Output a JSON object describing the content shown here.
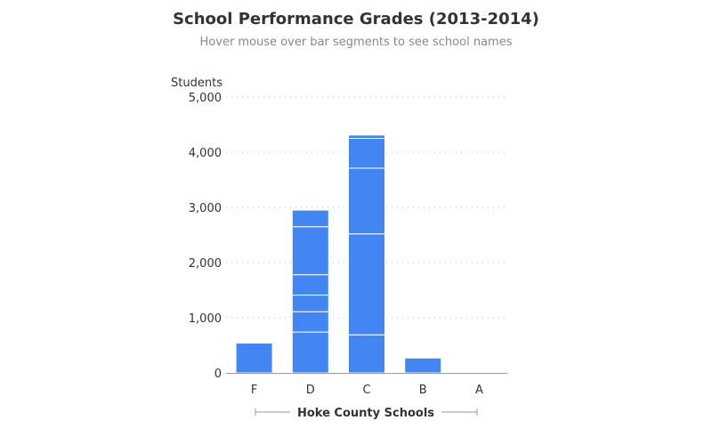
{
  "chart_data": {
    "type": "bar",
    "stacked": true,
    "title": "School Performance Grades (2013-2014)",
    "subtitle": "Hover mouse over bar segments to see school names",
    "ylabel": "Students",
    "xlabel": "Hoke County Schools",
    "ylim": [
      0,
      5000
    ],
    "yticks": [
      0,
      1000,
      2000,
      3000,
      4000,
      5000
    ],
    "ytick_labels": [
      "0",
      "1,000",
      "2,000",
      "3,000",
      "4,000",
      "5,000"
    ],
    "categories": [
      "F",
      "D",
      "C",
      "B",
      "A"
    ],
    "segments": [
      [
        540
      ],
      [
        740,
        370,
        300,
        370,
        870,
        300
      ],
      [
        690,
        1830,
        1190,
        540,
        60
      ],
      [
        270
      ],
      []
    ],
    "totals": [
      540,
      2950,
      4310,
      270,
      0
    ],
    "grid": true,
    "bar_color": "#4286f4",
    "segment_border_color": "#ffffff",
    "grid_color": "#bbbbbb",
    "axis_color": "#999999"
  }
}
